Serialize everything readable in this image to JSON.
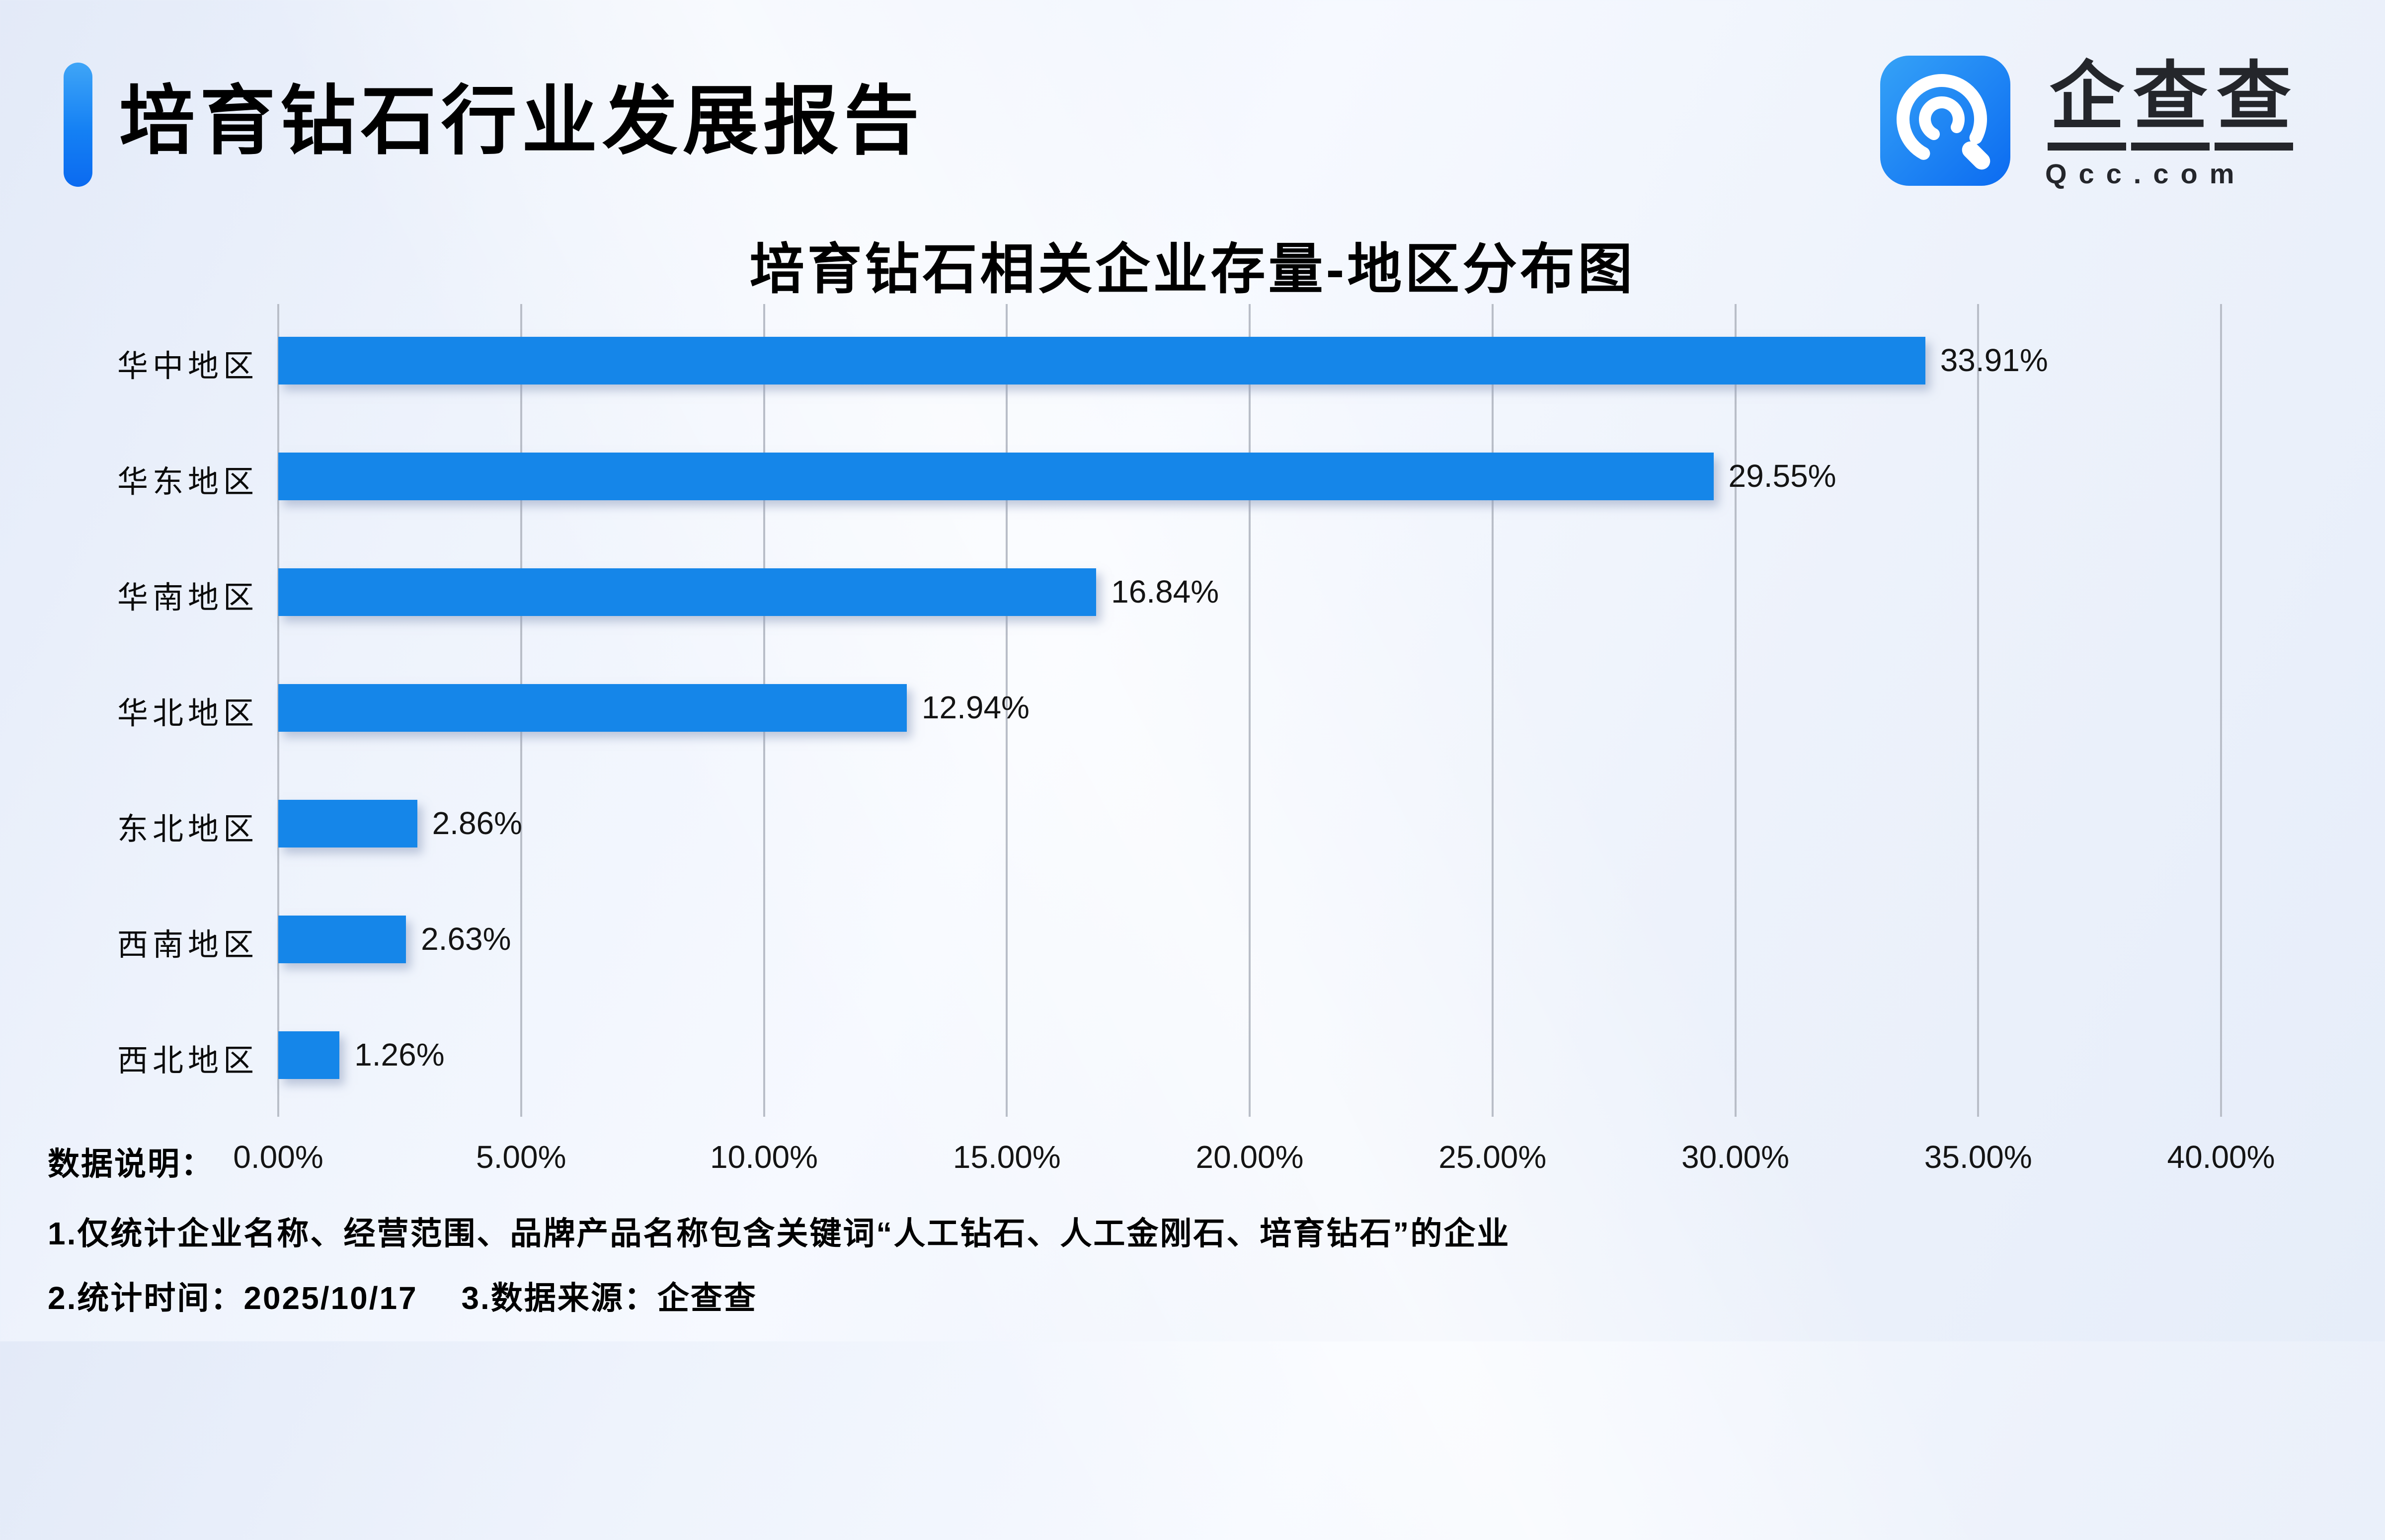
{
  "header": {
    "title": "培育钻石行业发展报告",
    "accent_color": "#0d6ef3"
  },
  "logo": {
    "brand_chars": [
      "企",
      "查",
      "查"
    ],
    "brand": "企查查",
    "domain": "Qcc.com",
    "icon_gradient_top": "#35a2f7",
    "icon_gradient_bottom": "#0b6bf1"
  },
  "chart_data": {
    "type": "bar",
    "orientation": "horizontal",
    "title": "培育钻石相关企业存量-地区分布图",
    "categories": [
      "华中地区",
      "华东地区",
      "华南地区",
      "华北地区",
      "东北地区",
      "西南地区",
      "西北地区"
    ],
    "values": [
      33.91,
      29.55,
      16.84,
      12.94,
      2.86,
      2.63,
      1.26
    ],
    "value_labels": [
      "33.91%",
      "29.55%",
      "16.84%",
      "12.94%",
      "2.86%",
      "2.63%",
      "1.26%"
    ],
    "x_ticks": [
      "0.00%",
      "5.00%",
      "10.00%",
      "15.00%",
      "20.00%",
      "25.00%",
      "30.00%",
      "35.00%",
      "40.00%"
    ],
    "x_tick_values": [
      0,
      5,
      10,
      15,
      20,
      25,
      30,
      35,
      40
    ],
    "xlim": [
      0,
      40
    ],
    "grid": true,
    "legend": "none",
    "bar_color": "#1586e9",
    "gridline_color": "#b9bec8"
  },
  "footer": {
    "label": "数据说明：",
    "note1": "1.仅统计企业名称、经营范围、品牌产品名称包含关键词“人工钻石、人工金刚石、培育钻石”的企业",
    "note2": "2.统计时间：2025/10/17　 3.数据来源：企查查"
  }
}
